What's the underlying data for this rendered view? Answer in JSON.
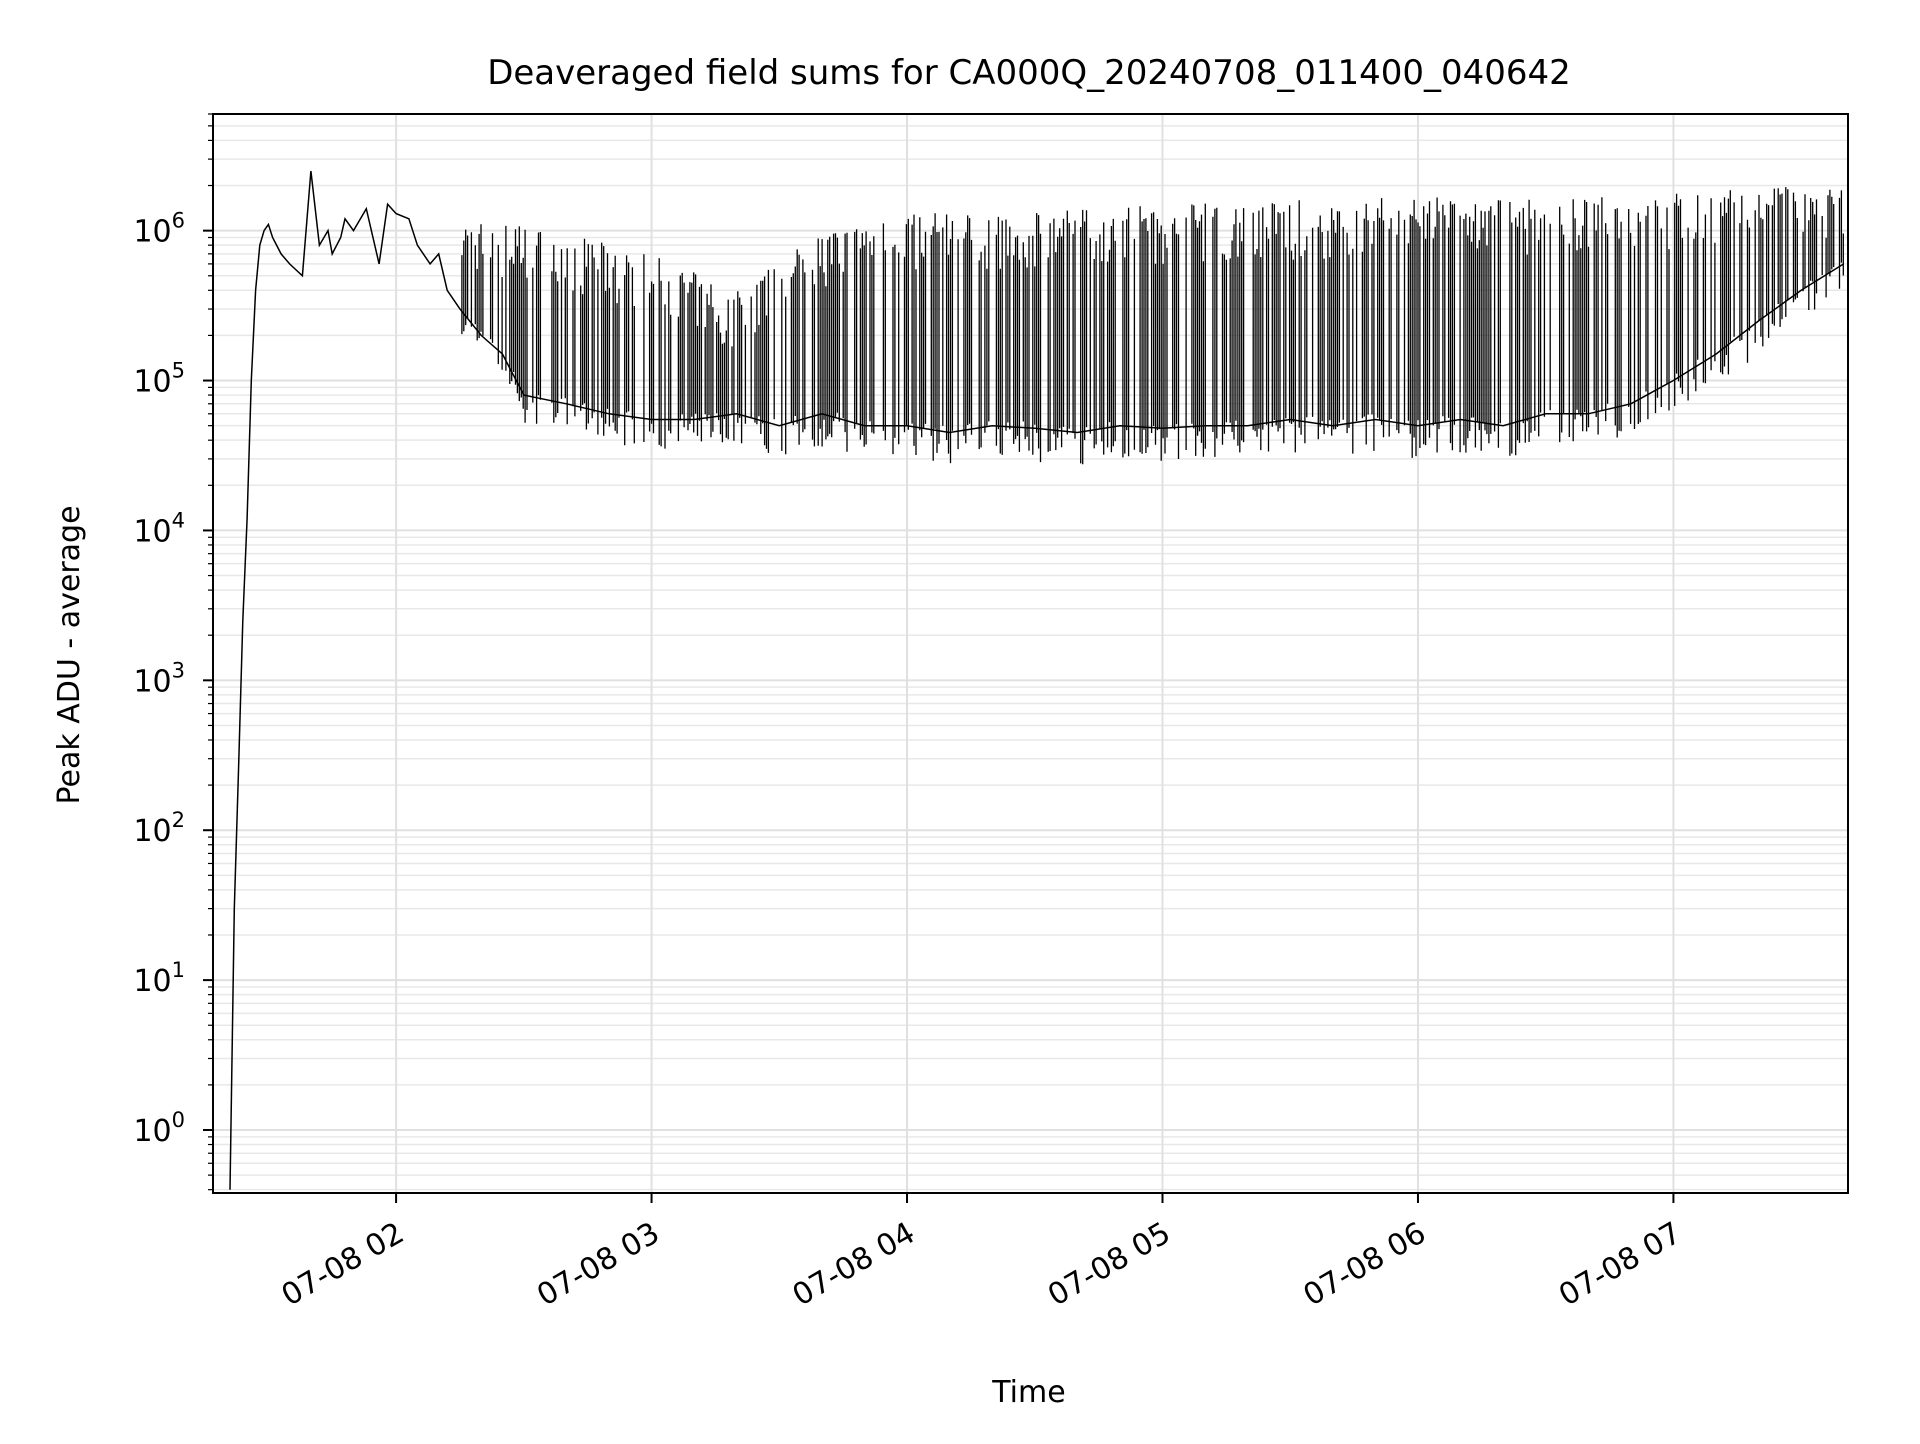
{
  "chart_data": {
    "type": "line",
    "title": "Deaveraged field sums for CA000Q_20240708_011400_040642",
    "xlabel": "Time",
    "ylabel": "Peak ADU - average",
    "y_scale": "log",
    "ylim": [
      0.38,
      6000000
    ],
    "xlim": [
      "07-08 01:17",
      "07-08 07:41"
    ],
    "grid": true,
    "legend": "none",
    "x_ticks": [
      {
        "value": "07-08 02:00",
        "label": "07-08 02"
      },
      {
        "value": "07-08 03:00",
        "label": "07-08 03"
      },
      {
        "value": "07-08 04:00",
        "label": "07-08 04"
      },
      {
        "value": "07-08 05:00",
        "label": "07-08 05"
      },
      {
        "value": "07-08 06:00",
        "label": "07-08 06"
      },
      {
        "value": "07-08 07:00",
        "label": "07-08 07"
      }
    ],
    "y_ticks": [
      {
        "value": 1,
        "base": "10",
        "exp": "0"
      },
      {
        "value": 10,
        "base": "10",
        "exp": "1"
      },
      {
        "value": 100,
        "base": "10",
        "exp": "2"
      },
      {
        "value": 1000,
        "base": "10",
        "exp": "3"
      },
      {
        "value": 10000,
        "base": "10",
        "exp": "4"
      },
      {
        "value": 100000,
        "base": "10",
        "exp": "5"
      },
      {
        "value": 1000000,
        "base": "10",
        "exp": "6"
      }
    ],
    "series": [
      {
        "color": "#000000",
        "x": [
          "07-08 01:21",
          "07-08 01:22",
          "07-08 01:23",
          "07-08 01:24",
          "07-08 01:25",
          "07-08 01:26",
          "07-08 01:27",
          "07-08 01:28",
          "07-08 01:29",
          "07-08 01:30",
          "07-08 01:31",
          "07-08 01:33",
          "07-08 01:35",
          "07-08 01:38",
          "07-08 01:40",
          "07-08 01:42",
          "07-08 01:44",
          "07-08 01:45",
          "07-08 01:47",
          "07-08 01:48",
          "07-08 01:50",
          "07-08 01:53",
          "07-08 01:56",
          "07-08 01:58",
          "07-08 02:00",
          "07-08 02:03",
          "07-08 02:05",
          "07-08 02:08",
          "07-08 02:10",
          "07-08 02:12",
          "07-08 02:15",
          "07-08 02:20",
          "07-08 02:25",
          "07-08 02:30",
          "07-08 02:40",
          "07-08 02:50",
          "07-08 03:00",
          "07-08 03:10",
          "07-08 03:20",
          "07-08 03:30",
          "07-08 03:40",
          "07-08 03:50",
          "07-08 04:00",
          "07-08 04:10",
          "07-08 04:20",
          "07-08 04:30",
          "07-08 04:40",
          "07-08 04:50",
          "07-08 05:00",
          "07-08 05:10",
          "07-08 05:20",
          "07-08 05:30",
          "07-08 05:40",
          "07-08 05:50",
          "07-08 06:00",
          "07-08 06:10",
          "07-08 06:20",
          "07-08 06:30",
          "07-08 06:40",
          "07-08 06:50",
          "07-08 07:00",
          "07-08 07:10",
          "07-08 07:20",
          "07-08 07:30",
          "07-08 07:40"
        ],
        "y": [
          0.4,
          30,
          250,
          2500,
          12000,
          100000,
          400000,
          800000,
          1000000,
          1100000,
          900000,
          700000,
          600000,
          500000,
          2500000,
          800000,
          1000000,
          700000,
          900000,
          1200000,
          1000000,
          1400000,
          600000,
          1500000,
          1300000,
          1200000,
          800000,
          600000,
          700000,
          400000,
          300000,
          200000,
          150000,
          80000,
          70000,
          60000,
          55000,
          55000,
          60000,
          50000,
          60000,
          50000,
          50000,
          45000,
          50000,
          48000,
          45000,
          50000,
          48000,
          50000,
          50000,
          55000,
          50000,
          55000,
          50000,
          55000,
          50000,
          60000,
          60000,
          70000,
          100000,
          150000,
          250000,
          400000,
          600000
        ]
      }
    ],
    "spike_envelope_upper": [
      {
        "x": "07-08 02:15",
        "y": 1200000
      },
      {
        "x": "07-08 02:30",
        "y": 1100000
      },
      {
        "x": "07-08 03:00",
        "y": 700000
      },
      {
        "x": "07-08 03:20",
        "y": 400000
      },
      {
        "x": "07-08 03:40",
        "y": 1000000
      },
      {
        "x": "07-08 04:00",
        "y": 1300000
      },
      {
        "x": "07-08 04:30",
        "y": 1400000
      },
      {
        "x": "07-08 05:00",
        "y": 1500000
      },
      {
        "x": "07-08 05:30",
        "y": 1600000
      },
      {
        "x": "07-08 06:00",
        "y": 1700000
      },
      {
        "x": "07-08 06:30",
        "y": 1600000
      },
      {
        "x": "07-08 07:00",
        "y": 1800000
      },
      {
        "x": "07-08 07:30",
        "y": 2000000
      }
    ]
  }
}
